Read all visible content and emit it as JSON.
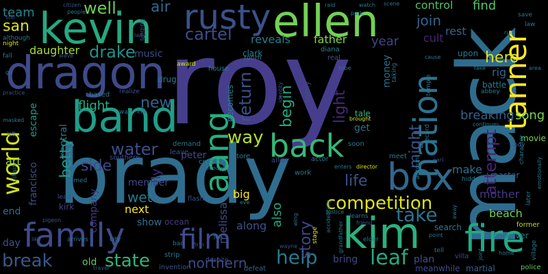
{
  "words": [
    {
      "text": "roy",
      "color": "#463e8c"
    },
    {
      "text": "mack",
      "color": "#2e6c8e"
    },
    {
      "text": "brady",
      "color": "#2f6d8e"
    },
    {
      "text": "kevin",
      "color": "#27a881"
    },
    {
      "text": "ellen",
      "color": "#73d055"
    },
    {
      "text": "dragon",
      "color": "#3e4a89"
    },
    {
      "text": "rusty",
      "color": "#3b518b"
    },
    {
      "text": "band",
      "color": "#1f9e89"
    },
    {
      "text": "family",
      "color": "#3e4c8a"
    },
    {
      "text": "film",
      "color": "#3d4d8a"
    },
    {
      "text": "kim",
      "color": "#2ab07f"
    },
    {
      "text": "fire",
      "color": "#22a884"
    },
    {
      "text": "tanner",
      "color": "#fde725"
    },
    {
      "text": "back",
      "color": "#37b878"
    },
    {
      "text": "box",
      "color": "#31688e"
    },
    {
      "text": "aang",
      "color": "#27ad81"
    },
    {
      "text": "nation",
      "color": "#2c728e"
    },
    {
      "text": "world",
      "color": "#d0e11c"
    },
    {
      "text": "competition",
      "color": "#dde318"
    },
    {
      "text": "leaf",
      "color": "#23a983"
    },
    {
      "text": "help",
      "color": "#2a788e"
    },
    {
      "text": "state",
      "color": "#2fb47c"
    },
    {
      "text": "break",
      "color": "#38588c"
    },
    {
      "text": "water",
      "color": "#3c4f8a"
    },
    {
      "text": "take",
      "color": "#2c738e"
    },
    {
      "text": "cartel",
      "color": "#3e4c8a"
    },
    {
      "text": "drake",
      "color": "#21918c"
    },
    {
      "text": "way",
      "color": "#b5de2b"
    },
    {
      "text": "well",
      "color": "#6ccd5a"
    },
    {
      "text": "san",
      "color": "#dde318"
    },
    {
      "text": "team",
      "color": "#25848e"
    },
    {
      "text": "hero",
      "color": "#dde318"
    },
    {
      "text": "attempt",
      "color": "#482475"
    },
    {
      "text": "light",
      "color": "#482878"
    },
    {
      "text": "begin",
      "color": "#22a884"
    },
    {
      "text": "return",
      "color": "#3b528b"
    },
    {
      "text": "story",
      "color": "#3f4889"
    },
    {
      "text": "might",
      "color": "#3b528b"
    },
    {
      "text": "join",
      "color": "#32648e"
    },
    {
      "text": "northern",
      "color": "#3f4889"
    },
    {
      "text": "life",
      "color": "#3b518b"
    },
    {
      "text": "fly",
      "color": "#472c7a"
    },
    {
      "text": "new",
      "color": "#33638d"
    },
    {
      "text": "side",
      "color": "#3f4889"
    },
    {
      "text": "wet",
      "color": "#2a788e"
    },
    {
      "text": "betty",
      "color": "#1f988b"
    },
    {
      "text": "air",
      "color": "#31688e"
    },
    {
      "text": "flight",
      "color": "#29af7f"
    },
    {
      "text": "breaking",
      "color": "#355f8d"
    },
    {
      "text": "song",
      "color": "#7ad151"
    },
    {
      "text": "find",
      "color": "#52c569"
    },
    {
      "text": "control",
      "color": "#4ac16d"
    },
    {
      "text": "rest",
      "color": "#32648e"
    },
    {
      "text": "year",
      "color": "#414487"
    },
    {
      "text": "cult",
      "color": "#482475"
    },
    {
      "text": "father",
      "color": "#86d549"
    },
    {
      "text": "reveals",
      "color": "#287c8e"
    },
    {
      "text": "daughter",
      "color": "#a8db34"
    },
    {
      "text": "music",
      "color": "#3d4e8a"
    },
    {
      "text": "central",
      "color": "#29798e"
    },
    {
      "text": "escape",
      "color": "#1f9a8a"
    },
    {
      "text": "francisco",
      "color": "#3b528b"
    },
    {
      "text": "art",
      "color": "#93d741"
    },
    {
      "text": "end",
      "color": "#2d708e"
    },
    {
      "text": "melissa",
      "color": "#3e4a89"
    },
    {
      "text": "also",
      "color": "#22a884"
    },
    {
      "text": "along",
      "color": "#3b528b"
    },
    {
      "text": "big",
      "color": "#fde725"
    },
    {
      "text": "next",
      "color": "#fde725"
    },
    {
      "text": "show",
      "color": "#2d708e"
    },
    {
      "text": "member",
      "color": "#3f4889"
    },
    {
      "text": "company",
      "color": "#443983"
    },
    {
      "text": "peter",
      "color": "#3f4889"
    },
    {
      "text": "bring",
      "color": "#3f4889"
    },
    {
      "text": "plan",
      "color": "#3b528b"
    },
    {
      "text": "mother",
      "color": "#453882"
    },
    {
      "text": "beach",
      "color": "#73d055"
    },
    {
      "text": "make",
      "color": "#2d718e"
    },
    {
      "text": "get",
      "color": "#2d708e"
    },
    {
      "text": "money",
      "color": "#2d708e"
    },
    {
      "text": "old",
      "color": "#5ec962"
    },
    {
      "text": "day",
      "color": "#3b528b"
    },
    {
      "text": "kirk",
      "color": "#414487"
    },
    {
      "text": "ocean",
      "color": "#453882"
    },
    {
      "text": "rig",
      "color": "#33638d"
    },
    {
      "text": "tale",
      "color": "#37b878"
    },
    {
      "text": "becomes",
      "color": "#24868e"
    },
    {
      "text": "clark",
      "color": "#26818e"
    },
    {
      "text": "room",
      "color": "#2a788e"
    },
    {
      "text": "house",
      "color": "#26828e"
    },
    {
      "text": "diana",
      "color": "#26828e"
    },
    {
      "text": "real",
      "color": "#3b528b"
    },
    {
      "text": "drug",
      "color": "#2a788e"
    },
    {
      "text": "based",
      "color": "#2a788e"
    },
    {
      "text": "movie",
      "color": "#75d054"
    },
    {
      "text": "battle",
      "color": "#287c8e"
    },
    {
      "text": "upon",
      "color": "#2a788e"
    },
    {
      "text": "search",
      "color": "#2a788e"
    },
    {
      "text": "former",
      "color": "#c2df23"
    },
    {
      "text": "however",
      "color": "#2a788e"
    },
    {
      "text": "master",
      "color": "#34608d"
    },
    {
      "text": "martial",
      "color": "#33638d"
    },
    {
      "text": "meanwhile",
      "color": "#3e4c8a"
    },
    {
      "text": "police",
      "color": "#5ec962"
    },
    {
      "text": "villa",
      "color": "#3e4a89"
    },
    {
      "text": "accidentally",
      "color": "#2a788e"
    },
    {
      "text": "friend",
      "color": "#3b528b"
    },
    {
      "text": "elder",
      "color": "#2a788e"
    },
    {
      "text": "grandfather",
      "color": "#2a788e"
    },
    {
      "text": "learns",
      "color": "#2a788e"
    },
    {
      "text": "justice",
      "color": "#2a788e"
    },
    {
      "text": "strip",
      "color": "#2a788e"
    },
    {
      "text": "invention",
      "color": "#3b528b"
    },
    {
      "text": "defeat",
      "color": "#33638d"
    },
    {
      "text": "wayne",
      "color": "#3e4a89"
    },
    {
      "text": "flash",
      "color": "#3b528b"
    },
    {
      "text": "credit",
      "color": "#2a788e"
    },
    {
      "text": "allen",
      "color": "#3f4889"
    },
    {
      "text": "actor",
      "color": "#2a788e"
    },
    {
      "text": "director",
      "color": "#dde318"
    },
    {
      "text": "enters",
      "color": "#2a788e"
    },
    {
      "text": "store",
      "color": "#2a788e"
    },
    {
      "text": "meet",
      "color": "#2a788e"
    },
    {
      "text": "soon",
      "color": "#2a788e"
    },
    {
      "text": "work",
      "color": "#2a788e"
    },
    {
      "text": "hidden",
      "color": "#2a788e"
    },
    {
      "text": "earl",
      "color": "#3b528b"
    },
    {
      "text": "boy",
      "color": "#3b528b"
    },
    {
      "text": "continues",
      "color": "#2a788e"
    },
    {
      "text": "character",
      "color": "#2a788e"
    },
    {
      "text": "abbey",
      "color": "#2a788e"
    },
    {
      "text": "fake",
      "color": "#2a788e"
    },
    {
      "text": "area",
      "color": "#2a788e"
    },
    {
      "text": "save",
      "color": "#2a788e"
    },
    {
      "text": "law",
      "color": "#2a788e"
    },
    {
      "text": "citizen",
      "color": "#3b528b"
    },
    {
      "text": "people",
      "color": "#2a788e"
    },
    {
      "text": "raid",
      "color": "#2a788e"
    },
    {
      "text": "watch",
      "color": "#2a788e"
    },
    {
      "text": "scene",
      "color": "#2a788e"
    },
    {
      "text": "park",
      "color": "#2a788e"
    },
    {
      "text": "still",
      "color": "#3b528b"
    },
    {
      "text": "although",
      "color": "#2a788e"
    },
    {
      "text": "night",
      "color": "#dde318"
    },
    {
      "text": "fall",
      "color": "#2a788e"
    },
    {
      "text": "gu",
      "color": "#2a788e"
    },
    {
      "text": "practice",
      "color": "#3b528b"
    },
    {
      "text": "masked",
      "color": "#2a788e"
    },
    {
      "text": "left",
      "color": "#3b528b"
    },
    {
      "text": "villain",
      "color": "#2a788e"
    },
    {
      "text": "named",
      "color": "#2a788e"
    },
    {
      "text": "lead",
      "color": "#3b528b"
    },
    {
      "text": "pigeon",
      "color": "#3b528b"
    },
    {
      "text": "arrives",
      "color": "#2a788e"
    },
    {
      "text": "like",
      "color": "#3b528b"
    },
    {
      "text": "city",
      "color": "#2a788e"
    },
    {
      "text": "travel",
      "color": "#3b528b"
    },
    {
      "text": "bad",
      "color": "#2a788e"
    },
    {
      "text": "firm",
      "color": "#3b528b"
    },
    {
      "text": "job",
      "color": "#2a788e"
    },
    {
      "text": "despite",
      "color": "#3b528b"
    },
    {
      "text": "southern",
      "color": "#3b528b"
    },
    {
      "text": "demand",
      "color": "#2a788e"
    },
    {
      "text": "leave",
      "color": "#3b528b"
    },
    {
      "text": "realize",
      "color": "#3b528b"
    },
    {
      "text": "war",
      "color": "#2a788e"
    },
    {
      "text": "kill",
      "color": "#3b528b"
    },
    {
      "text": "lady",
      "color": "#3b528b"
    },
    {
      "text": "singing",
      "color": "#3b528b"
    },
    {
      "text": "award",
      "color": "#dde318"
    },
    {
      "text": "wave",
      "color": "#3b528b"
    },
    {
      "text": "tribe",
      "color": "#2a788e"
    },
    {
      "text": "identity",
      "color": "#3b528b"
    },
    {
      "text": "history",
      "color": "#3b528b"
    },
    {
      "text": "brought",
      "color": "#dde318"
    },
    {
      "text": "taking",
      "color": "#2a788e"
    },
    {
      "text": "temple",
      "color": "#2a788e"
    },
    {
      "text": "record",
      "color": "#2a788e"
    },
    {
      "text": "account",
      "color": "#2a788e"
    },
    {
      "text": "tell",
      "color": "#2a788e"
    },
    {
      "text": "point",
      "color": "#2a788e"
    },
    {
      "text": "home",
      "color": "#2a788e"
    },
    {
      "text": "joint",
      "color": "#2a788e"
    },
    {
      "text": "village",
      "color": "#2a788e"
    },
    {
      "text": "later",
      "color": "#2a788e"
    },
    {
      "text": "emotionally",
      "color": "#2a788e"
    },
    {
      "text": "run",
      "color": "#2a788e"
    },
    {
      "text": "cause",
      "color": "#2a788e"
    },
    {
      "text": "away",
      "color": "#2a788e"
    },
    {
      "text": "enough",
      "color": "#2a788e"
    },
    {
      "text": "eve",
      "color": "#2a788e"
    },
    {
      "text": "wing",
      "color": "#2a788e"
    },
    {
      "text": "stage",
      "color": "#dde318"
    }
  ]
}
